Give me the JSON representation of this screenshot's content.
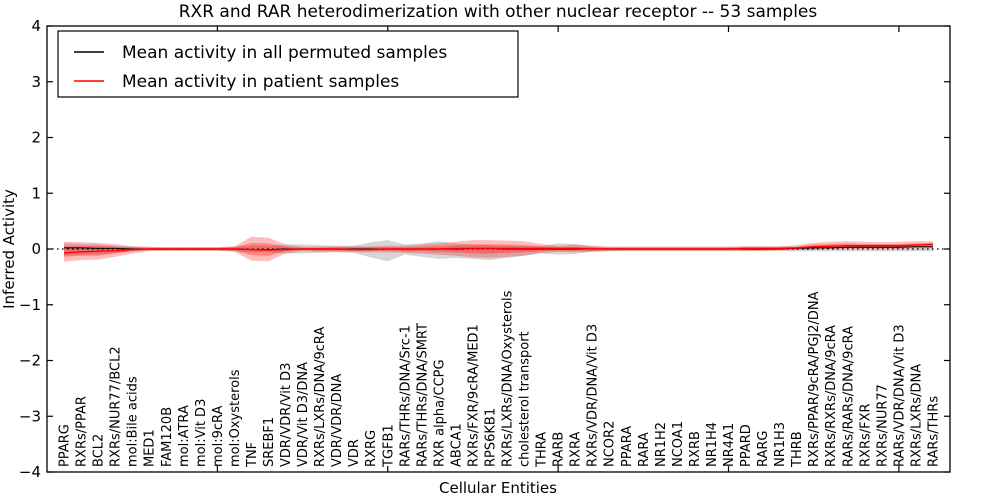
{
  "figure": {
    "title": "RXR and RAR heterodimerization with other nuclear receptor -- 53 samples",
    "xlabel": "Cellular Entities",
    "ylabel": "Inferred Activity"
  },
  "legend": {
    "position": "upper left",
    "items": [
      {
        "label": "Mean activity in all permuted samples",
        "color": "#000000"
      },
      {
        "label": "Mean activity in patient samples",
        "color": "#ff0000"
      }
    ]
  },
  "colors": {
    "patient_line": "#ff0000",
    "permuted_line": "#000000",
    "patient_band": "#ff0000",
    "permuted_band": "#808080",
    "zero_line": "#000000",
    "axis": "#000000",
    "background": "#ffffff"
  },
  "chart_data": {
    "type": "line",
    "title": "RXR and RAR heterodimerization with other nuclear receptor -- 53 samples",
    "xlabel": "Cellular Entities",
    "ylabel": "Inferred Activity",
    "ylim": [
      -4,
      4
    ],
    "xlim": [
      0,
      53
    ],
    "grid": false,
    "legend_position": "upper left",
    "y_tick_values": [
      4,
      3,
      2,
      1,
      0,
      -1,
      -2,
      -3,
      -4
    ],
    "y_tick_labels": [
      "4",
      "3",
      "2",
      "1",
      "0",
      "−1",
      "−2",
      "−3",
      "−4"
    ],
    "x_tick_units": [
      10,
      20,
      30,
      40,
      50
    ],
    "zero_line": {
      "value": 0,
      "style": "dotted",
      "color": "#000000"
    },
    "categories": [
      "PPARG",
      "RXRs/PPAR",
      "BCL2",
      "RXRs/NUR77/BCL2",
      "mol:Bile acids",
      "MED1",
      "FAM120B",
      "mol:ATRA",
      "mol:Vit D3",
      "mol:9cRA",
      "mol:Oxysterols",
      "TNF",
      "SREBF1",
      "VDR/VDR/Vit D3",
      "VDR/Vit D3/DNA",
      "RXRs/LXRs/DNA/9cRA",
      "VDR/VDR/DNA",
      "VDR",
      "RXRG",
      "TGFB1",
      "RARs/THRs/DNA/Src-1",
      "RARs/THRs/DNA/SMRT",
      "RXR alpha/CCPG",
      "ABCA1",
      "RXRs/FXR/9cRA/MED1",
      "RPS6KB1",
      "RXRs/LXRs/DNA/Oxysterols",
      "cholesterol transport",
      "THRA",
      "RARB",
      "RXRA",
      "RXRs/VDR/DNA/Vit D3",
      "NCOR2",
      "PPARA",
      "RARA",
      "NR1H2",
      "NCOA1",
      "RXRB",
      "NR1H4",
      "NR4A1",
      "PPARD",
      "RARG",
      "NR1H3",
      "THRB",
      "RXRs/PPAR/9cRA/PGJ2/DNA",
      "RXRs/RXRs/DNA/9cRA",
      "RARs/RARs/DNA/9cRA",
      "RXRs/FXR",
      "RXRs/NUR77",
      "RARs/VDR/DNA/Vit D3",
      "RXRs/LXRs/DNA",
      "RARs/THRs"
    ],
    "series": [
      {
        "name": "Mean activity in all permuted samples",
        "color": "#000000",
        "width": 1.0,
        "values": [
          0.02,
          0.02,
          0.01,
          0.01,
          0.0,
          0.0,
          0.0,
          0.0,
          0.0,
          0.0,
          0.0,
          -0.01,
          -0.01,
          0.0,
          0.0,
          0.0,
          0.0,
          0.0,
          0.0,
          0.0,
          0.0,
          0.0,
          0.0,
          0.0,
          0.01,
          0.01,
          0.0,
          0.0,
          0.0,
          0.0,
          0.0,
          0.0,
          0.0,
          0.0,
          0.0,
          0.0,
          0.0,
          0.0,
          0.0,
          0.0,
          0.0,
          0.0,
          0.0,
          0.01,
          0.02,
          0.02,
          0.03,
          0.03,
          0.03,
          0.03,
          0.04,
          0.04
        ]
      },
      {
        "name": "Mean activity in patient samples",
        "color": "#ff0000",
        "width": 1.4,
        "values": [
          -0.07,
          -0.05,
          -0.04,
          -0.03,
          -0.01,
          0.0,
          0.0,
          0.0,
          0.0,
          0.0,
          0.0,
          -0.01,
          -0.02,
          -0.01,
          0.0,
          0.0,
          0.0,
          -0.01,
          -0.01,
          0.0,
          0.0,
          0.0,
          0.0,
          0.01,
          0.01,
          0.01,
          0.01,
          0.01,
          0.01,
          0.01,
          0.01,
          0.0,
          0.0,
          0.0,
          0.0,
          0.0,
          0.0,
          0.0,
          0.0,
          0.0,
          0.01,
          0.01,
          0.01,
          0.02,
          0.04,
          0.05,
          0.06,
          0.06,
          0.06,
          0.06,
          0.07,
          0.08
        ]
      }
    ],
    "bands": [
      {
        "name": "permuted-samples-range",
        "color": "#808080",
        "opacity": 0.32,
        "hi": [
          0.1,
          0.09,
          0.08,
          0.06,
          0.04,
          0.03,
          0.03,
          0.03,
          0.03,
          0.03,
          0.04,
          0.06,
          0.06,
          0.08,
          0.08,
          0.07,
          0.06,
          0.06,
          0.12,
          0.16,
          0.08,
          0.1,
          0.14,
          0.1,
          0.08,
          0.07,
          0.06,
          0.05,
          0.05,
          0.1,
          0.09,
          0.05,
          0.04,
          0.04,
          0.04,
          0.04,
          0.04,
          0.04,
          0.04,
          0.04,
          0.04,
          0.04,
          0.04,
          0.04,
          0.05,
          0.05,
          0.05,
          0.05,
          0.05,
          0.05,
          0.05,
          0.05
        ],
        "lo": [
          -0.12,
          -0.1,
          -0.09,
          -0.07,
          -0.04,
          -0.03,
          -0.03,
          -0.03,
          -0.03,
          -0.03,
          -0.04,
          -0.06,
          -0.06,
          -0.08,
          -0.08,
          -0.07,
          -0.06,
          -0.07,
          -0.15,
          -0.22,
          -0.1,
          -0.14,
          -0.18,
          -0.16,
          -0.18,
          -0.2,
          -0.16,
          -0.12,
          -0.08,
          -0.1,
          -0.09,
          -0.05,
          -0.04,
          -0.04,
          -0.04,
          -0.04,
          -0.04,
          -0.04,
          -0.04,
          -0.04,
          -0.04,
          -0.04,
          -0.04,
          -0.04,
          -0.04,
          -0.04,
          -0.04,
          -0.04,
          -0.04,
          -0.04,
          -0.04,
          -0.04
        ]
      },
      {
        "name": "patient-samples-range-outer",
        "color": "#ff0000",
        "opacity": 0.26,
        "hi": [
          0.13,
          0.12,
          0.11,
          0.09,
          0.05,
          0.04,
          0.03,
          0.03,
          0.03,
          0.03,
          0.05,
          0.22,
          0.2,
          0.08,
          0.04,
          0.04,
          0.05,
          0.05,
          0.05,
          0.06,
          0.06,
          0.08,
          0.1,
          0.13,
          0.16,
          0.16,
          0.15,
          0.14,
          0.09,
          0.06,
          0.08,
          0.06,
          0.04,
          0.04,
          0.04,
          0.04,
          0.04,
          0.04,
          0.04,
          0.04,
          0.05,
          0.05,
          0.05,
          0.07,
          0.11,
          0.13,
          0.14,
          0.13,
          0.12,
          0.13,
          0.14,
          0.14
        ],
        "lo": [
          -0.23,
          -0.2,
          -0.19,
          -0.14,
          -0.08,
          -0.04,
          -0.03,
          -0.03,
          -0.03,
          -0.03,
          -0.05,
          -0.21,
          -0.22,
          -0.08,
          -0.04,
          -0.05,
          -0.05,
          -0.06,
          -0.06,
          -0.06,
          -0.07,
          -0.08,
          -0.1,
          -0.12,
          -0.15,
          -0.16,
          -0.14,
          -0.12,
          -0.07,
          -0.05,
          -0.06,
          -0.05,
          -0.04,
          -0.03,
          -0.03,
          -0.03,
          -0.03,
          -0.03,
          -0.03,
          -0.03,
          -0.03,
          -0.03,
          -0.02,
          -0.02,
          -0.01,
          0.0,
          0.0,
          0.0,
          0.0,
          0.0,
          0.01,
          0.01
        ]
      },
      {
        "name": "patient-samples-range-inner",
        "color": "#ff0000",
        "opacity": 0.3,
        "hi": [
          0.05,
          0.05,
          0.06,
          0.04,
          0.03,
          0.02,
          0.02,
          0.02,
          0.02,
          0.02,
          0.03,
          0.11,
          0.1,
          0.04,
          0.02,
          0.02,
          0.03,
          0.03,
          0.03,
          0.03,
          0.03,
          0.04,
          0.05,
          0.07,
          0.08,
          0.08,
          0.08,
          0.07,
          0.05,
          0.03,
          0.04,
          0.03,
          0.02,
          0.02,
          0.02,
          0.02,
          0.02,
          0.02,
          0.02,
          0.02,
          0.03,
          0.03,
          0.03,
          0.04,
          0.08,
          0.09,
          0.1,
          0.09,
          0.09,
          0.09,
          0.1,
          0.11
        ],
        "lo": [
          -0.14,
          -0.12,
          -0.12,
          -0.08,
          -0.04,
          -0.02,
          -0.02,
          -0.02,
          -0.02,
          -0.02,
          -0.03,
          -0.11,
          -0.12,
          -0.04,
          -0.02,
          -0.03,
          -0.03,
          -0.03,
          -0.03,
          -0.03,
          -0.04,
          -0.04,
          -0.05,
          -0.06,
          -0.08,
          -0.08,
          -0.07,
          -0.06,
          -0.04,
          -0.03,
          -0.03,
          -0.03,
          -0.02,
          -0.02,
          -0.02,
          -0.02,
          -0.02,
          -0.02,
          -0.02,
          -0.02,
          -0.02,
          -0.02,
          -0.01,
          0.0,
          0.01,
          0.02,
          0.02,
          0.02,
          0.02,
          0.02,
          0.03,
          0.04
        ]
      }
    ]
  }
}
